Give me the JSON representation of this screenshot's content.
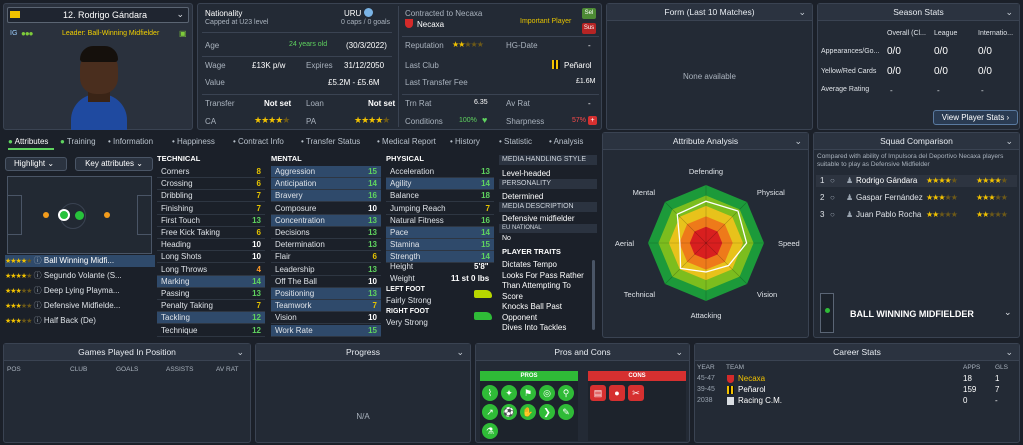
{
  "player": {
    "number_name": "12. Rodrigo Gándara",
    "ca_short": "IG",
    "role": "Leader: Ball-Winning Midfielder"
  },
  "info": {
    "nationality_label": "Nationality",
    "nationality": "URU",
    "capped": "Capped at U23 level",
    "caps": "0 caps / 0 goals",
    "contracted_label": "Contracted to Necaxa",
    "club": "Necaxa",
    "important": "Important Player",
    "sel": "Sel",
    "sus": "Sus",
    "age_label": "Age",
    "age": "24 years old",
    "dob": "(30/3/2022)",
    "reputation_label": "Reputation",
    "hg_label": "HG-Date",
    "hg": "-",
    "wage_label": "Wage",
    "wage": "£13K p/w",
    "expires_label": "Expires",
    "expires": "31/12/2050",
    "last_club_label": "Last Club",
    "last_club": "Peñarol",
    "value_label": "Value",
    "value": "£5.2M - £5.6M",
    "last_fee_label": "Last Transfer Fee",
    "last_fee": "£1.6M",
    "transfer_label": "Transfer",
    "transfer": "Not set",
    "loan_label": "Loan",
    "loan": "Not set",
    "trn_label": "Trn Rat",
    "trn": "6.35",
    "av_label": "Av Rat",
    "av": "-",
    "ca_label": "CA",
    "pa_label": "PA",
    "conditions_label": "Conditions",
    "conditions": "100%",
    "sharpness_label": "Sharpness",
    "sharpness": "57%"
  },
  "form": {
    "title": "Form (Last 10 Matches)",
    "empty": "None available"
  },
  "season": {
    "title": "Season Stats",
    "cols": [
      "Overall (Cl...",
      "League",
      "Internatio..."
    ],
    "rows": [
      {
        "label": "Appearances/Go...",
        "v": [
          "0/0",
          "0/0",
          "0/0"
        ]
      },
      {
        "label": "Yellow/Red Cards",
        "v": [
          "0/0",
          "0/0",
          "0/0"
        ]
      },
      {
        "label": "Average Rating",
        "v": [
          "-",
          "-",
          "-"
        ]
      }
    ],
    "button": "View Player Stats"
  },
  "tabs": [
    "Attributes",
    "Training",
    "Information",
    "Happiness",
    "Contract Info",
    "Transfer Status",
    "Medical Report",
    "History",
    "Statistic",
    "Analysis"
  ],
  "pitch": {
    "highlight": "Highlight",
    "key_attr": "Key attributes",
    "roles": [
      {
        "name": "Ball Winning Midfi...",
        "stars": 4.5
      },
      {
        "name": "Segundo Volante (S...",
        "stars": 4
      },
      {
        "name": "Deep Lying Playma...",
        "stars": 3.5
      },
      {
        "name": "Defensive Midfielde...",
        "stars": 3.5
      },
      {
        "name": "Half Back (De)",
        "stars": 3
      }
    ]
  },
  "technical": {
    "title": "TECHNICAL",
    "attrs": [
      {
        "n": "Corners",
        "v": "8",
        "c": "yel",
        "hl": false
      },
      {
        "n": "Crossing",
        "v": "6",
        "c": "yel",
        "hl": false
      },
      {
        "n": "Dribbling",
        "v": "7",
        "c": "yel",
        "hl": false
      },
      {
        "n": "Finishing",
        "v": "7",
        "c": "yel",
        "hl": false
      },
      {
        "n": "First Touch",
        "v": "13",
        "c": "grn",
        "hl": false
      },
      {
        "n": "Free Kick Taking",
        "v": "6",
        "c": "yel",
        "hl": false
      },
      {
        "n": "Heading",
        "v": "10",
        "c": "wht",
        "hl": false
      },
      {
        "n": "Long Shots",
        "v": "10",
        "c": "wht",
        "hl": false
      },
      {
        "n": "Long Throws",
        "v": "4",
        "c": "org",
        "hl": false
      },
      {
        "n": "Marking",
        "v": "14",
        "c": "grn",
        "hl": true
      },
      {
        "n": "Passing",
        "v": "13",
        "c": "grn",
        "hl": false
      },
      {
        "n": "Penalty Taking",
        "v": "7",
        "c": "yel",
        "hl": false
      },
      {
        "n": "Tackling",
        "v": "12",
        "c": "grn",
        "hl": true
      },
      {
        "n": "Technique",
        "v": "12",
        "c": "grn",
        "hl": false
      }
    ]
  },
  "mental": {
    "title": "MENTAL",
    "attrs": [
      {
        "n": "Aggression",
        "v": "15",
        "c": "grn",
        "hl": true
      },
      {
        "n": "Anticipation",
        "v": "14",
        "c": "grn",
        "hl": true
      },
      {
        "n": "Bravery",
        "v": "16",
        "c": "grn",
        "hl": true
      },
      {
        "n": "Composure",
        "v": "10",
        "c": "wht",
        "hl": false
      },
      {
        "n": "Concentration",
        "v": "13",
        "c": "grn",
        "hl": true
      },
      {
        "n": "Decisions",
        "v": "13",
        "c": "grn",
        "hl": false
      },
      {
        "n": "Determination",
        "v": "13",
        "c": "grn",
        "hl": false
      },
      {
        "n": "Flair",
        "v": "6",
        "c": "yel",
        "hl": false
      },
      {
        "n": "Leadership",
        "v": "13",
        "c": "grn",
        "hl": false
      },
      {
        "n": "Off The Ball",
        "v": "10",
        "c": "wht",
        "hl": false
      },
      {
        "n": "Positioning",
        "v": "13",
        "c": "grn",
        "hl": true
      },
      {
        "n": "Teamwork",
        "v": "7",
        "c": "yel",
        "hl": true
      },
      {
        "n": "Vision",
        "v": "10",
        "c": "wht",
        "hl": false
      },
      {
        "n": "Work Rate",
        "v": "15",
        "c": "grn",
        "hl": true
      }
    ]
  },
  "physical": {
    "title": "PHYSICAL",
    "attrs": [
      {
        "n": "Acceleration",
        "v": "13",
        "c": "grn",
        "hl": false
      },
      {
        "n": "Agility",
        "v": "14",
        "c": "grn",
        "hl": true
      },
      {
        "n": "Balance",
        "v": "18",
        "c": "grn",
        "hl": false
      },
      {
        "n": "Jumping Reach",
        "v": "7",
        "c": "yel",
        "hl": false
      },
      {
        "n": "Natural Fitness",
        "v": "16",
        "c": "grn",
        "hl": false
      },
      {
        "n": "Pace",
        "v": "14",
        "c": "grn",
        "hl": true
      },
      {
        "n": "Stamina",
        "v": "15",
        "c": "grn",
        "hl": true
      },
      {
        "n": "Strength",
        "v": "14",
        "c": "grn",
        "hl": true
      }
    ],
    "height_label": "Height",
    "height": "5'8\"",
    "weight_label": "Weight",
    "weight": "11 st 0 lbs",
    "left_foot_label": "LEFT FOOT",
    "left_foot": "Fairly Strong",
    "right_foot_label": "RIGHT FOOT",
    "right_foot": "Very Strong"
  },
  "media": {
    "title": "MEDIA HANDLING STYLE",
    "style": "Level-headed",
    "personality_label": "PERSONALITY",
    "personality": "Determined",
    "desc_label": "MEDIA DESCRIPTION",
    "desc": "Defensive midfielder",
    "eu_label": "EU NATIONAL",
    "eu": "No",
    "traits_label": "PLAYER TRAITS",
    "traits": [
      "Dictates Tempo",
      "Looks For Pass Rather",
      "Than Attempting To",
      "Score",
      "Knocks Ball Past",
      "Opponent",
      "Dives Into Tackles"
    ]
  },
  "analysis": {
    "title": "Attribute Analysis",
    "axes": [
      "Defending",
      "Physical",
      "Speed",
      "Vision",
      "Attacking",
      "Technical",
      "Aerial",
      "Mental"
    ],
    "values": [
      0.72,
      0.78,
      0.7,
      0.55,
      0.5,
      0.62,
      0.45,
      0.7
    ]
  },
  "squad": {
    "title": "Squad Comparison",
    "desc": "Compared with ability of Impulsora del Deportivo Necaxa players suitable to play as Defensive Midfielder",
    "players": [
      {
        "rank": "1",
        "name": "Rodrigo Gándara",
        "ca": 4,
        "pa": 4
      },
      {
        "rank": "2",
        "name": "Gaspar Fernández",
        "ca": 3.5,
        "pa": 3.5
      },
      {
        "rank": "3",
        "name": "Juan Pablo Rocha",
        "ca": 2.5,
        "pa": 2.5
      }
    ],
    "role_title": "BALL WINNING MIDFIELDER"
  },
  "bottom": {
    "games_title": "Games Played In Position",
    "games_cols": [
      "POS",
      "CLUB",
      "GOALS",
      "ASSISTS",
      "AV RAT"
    ],
    "progress_title": "Progress",
    "progress_na": "N/A",
    "proscons_title": "Pros and Cons",
    "pros": "PROS",
    "cons": "CONS",
    "career_title": "Career Stats",
    "career_cols": [
      "YEAR",
      "TEAM",
      "APPS",
      "GLS"
    ],
    "career": [
      {
        "year": "45-47",
        "team": "Necaxa",
        "apps": "18",
        "gls": "1"
      },
      {
        "year": "39-45",
        "team": "Peñarol",
        "apps": "159",
        "gls": "7"
      },
      {
        "year": "2038",
        "team": "Racing C.M.",
        "apps": "0",
        "gls": "-"
      }
    ]
  }
}
